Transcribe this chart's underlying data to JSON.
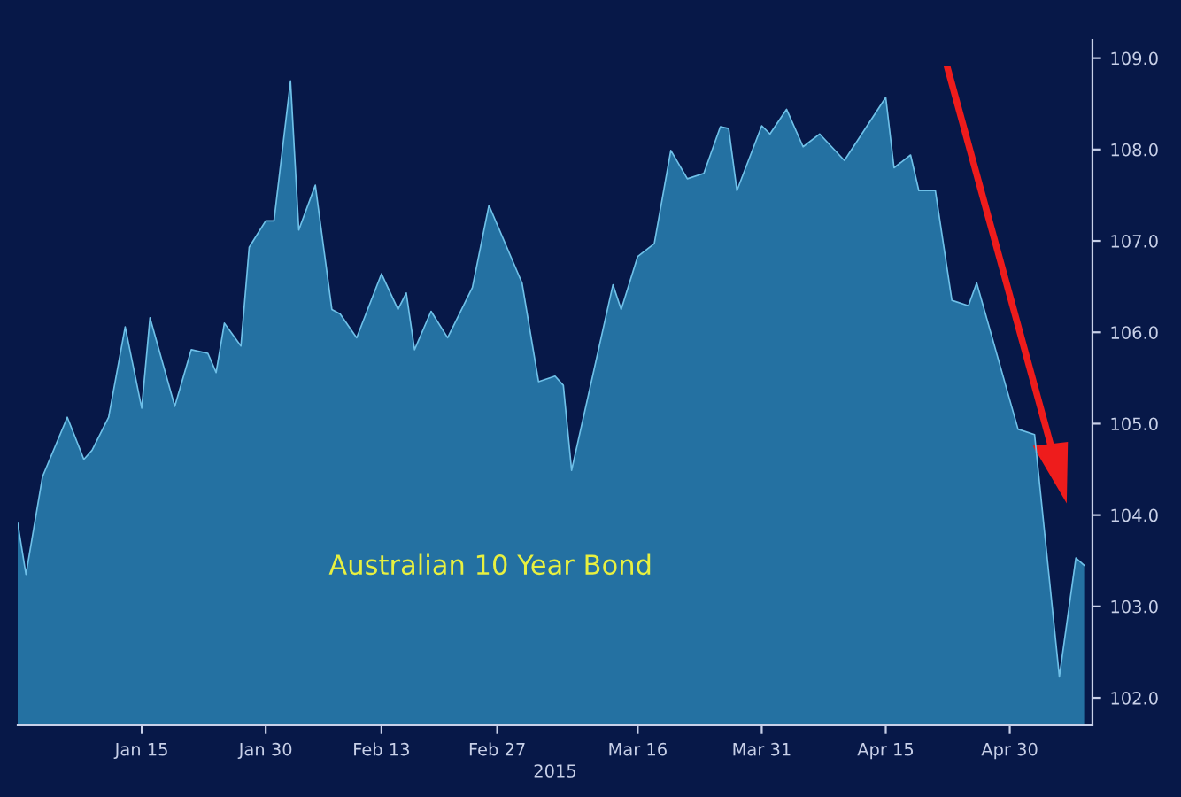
{
  "chart_data": {
    "type": "area",
    "xlabel": "2015",
    "annotations": [
      "Australian 10 Year Bond"
    ],
    "x": [
      "2014-12-31",
      "2015-01-01",
      "2015-01-03",
      "2015-01-06",
      "2015-01-08",
      "2015-01-09",
      "2015-01-11",
      "2015-01-13",
      "2015-01-15",
      "2015-01-16",
      "2015-01-19",
      "2015-01-21",
      "2015-01-23",
      "2015-01-24",
      "2015-01-25",
      "2015-01-27",
      "2015-01-28",
      "2015-01-30",
      "2015-01-31",
      "2015-02-02",
      "2015-02-03",
      "2015-02-05",
      "2015-02-07",
      "2015-02-08",
      "2015-02-10",
      "2015-02-13",
      "2015-02-15",
      "2015-02-16",
      "2015-02-17",
      "2015-02-19",
      "2015-02-21",
      "2015-02-24",
      "2015-02-26",
      "2015-03-02",
      "2015-03-04",
      "2015-03-06",
      "2015-03-07",
      "2015-03-08",
      "2015-03-13",
      "2015-03-14",
      "2015-03-16",
      "2015-03-18",
      "2015-03-20",
      "2015-03-22",
      "2015-03-24",
      "2015-03-26",
      "2015-03-27",
      "2015-03-28",
      "2015-03-31",
      "2015-04-01",
      "2015-04-03",
      "2015-04-05",
      "2015-04-07",
      "2015-04-10",
      "2015-04-15",
      "2015-04-16",
      "2015-04-18",
      "2015-04-19",
      "2015-04-21",
      "2015-04-23",
      "2015-04-25",
      "2015-04-26",
      "2015-05-01",
      "2015-05-03",
      "2015-05-06",
      "2015-05-08",
      "2015-05-09"
    ],
    "series": [
      {
        "color": "#2f8fc0",
        "values": [
          103.91,
          103.35,
          104.42,
          105.07,
          104.61,
          104.71,
          105.07,
          106.06,
          105.17,
          106.16,
          105.19,
          105.81,
          105.77,
          105.56,
          106.1,
          105.85,
          106.93,
          107.22,
          107.22,
          108.75,
          107.12,
          107.61,
          106.25,
          106.2,
          105.94,
          106.64,
          106.25,
          106.43,
          105.81,
          106.23,
          105.94,
          106.49,
          107.39,
          106.54,
          105.46,
          105.52,
          105.42,
          104.49,
          106.52,
          106.25,
          106.83,
          106.97,
          107.99,
          107.68,
          107.74,
          108.25,
          108.23,
          107.55,
          108.26,
          108.17,
          108.44,
          108.03,
          108.17,
          107.88,
          108.57,
          107.8,
          107.94,
          107.55,
          107.55,
          106.35,
          106.29,
          106.54,
          104.94,
          104.88,
          102.23,
          103.53,
          103.45
        ]
      }
    ],
    "xlim": [
      "2014-12-31",
      "2015-05-10"
    ],
    "xticks": [
      {
        "value": "2015-01-15",
        "label": "Jan 15"
      },
      {
        "value": "2015-01-30",
        "label": "Jan 30"
      },
      {
        "value": "2015-02-13",
        "label": "Feb 13"
      },
      {
        "value": "2015-02-27",
        "label": "Feb 27"
      },
      {
        "value": "2015-03-16",
        "label": "Mar 16"
      },
      {
        "value": "2015-03-31",
        "label": "Mar 31"
      },
      {
        "value": "2015-04-15",
        "label": "Apr 15"
      },
      {
        "value": "2015-04-30",
        "label": "Apr 30"
      }
    ],
    "ylim": [
      101.7,
      109.2
    ],
    "yticks": [
      {
        "value": 102,
        "label": "102.0"
      },
      {
        "value": 103,
        "label": "103.0"
      },
      {
        "value": 104,
        "label": "104.0"
      },
      {
        "value": 105,
        "label": "105.0"
      },
      {
        "value": 106,
        "label": "106.0"
      },
      {
        "value": 107,
        "label": "107.0"
      },
      {
        "value": 108,
        "label": "108.0"
      },
      {
        "value": 109,
        "label": "109.0"
      }
    ],
    "grid": false,
    "legend": false
  }
}
